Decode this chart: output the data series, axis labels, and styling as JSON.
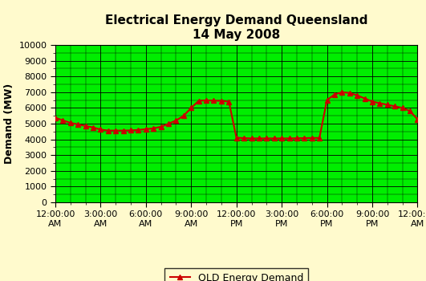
{
  "title_line1": "Electrical Energy Demand Queensland",
  "title_line2": "14 May 2008",
  "ylabel": "Demand (MW)",
  "legend_label": "QLD Energy Demand",
  "background_color": "#FFFACD",
  "plot_bg_color": "#00EE00",
  "line_color": "#CC0000",
  "marker": "^",
  "markersize": 4,
  "linewidth": 1.5,
  "ylim": [
    0,
    10000
  ],
  "yticks": [
    0,
    1000,
    2000,
    3000,
    4000,
    5000,
    6000,
    7000,
    8000,
    9000,
    10000
  ],
  "xtick_positions": [
    0,
    3,
    6,
    9,
    12,
    15,
    18,
    21,
    24
  ],
  "xtick_labels_line1": [
    "12:00:00",
    "3:00:00",
    "6:00:00",
    "9:00:00",
    "12:00:00",
    "3:00:00",
    "6:00:00",
    "9:00:00",
    "12:00:00"
  ],
  "xtick_labels_line2": [
    "AM",
    "AM",
    "AM",
    "AM",
    "PM",
    "PM",
    "PM",
    "PM",
    "AM"
  ],
  "xlim": [
    0,
    24
  ],
  "time_values": [
    0,
    0.5,
    1,
    1.5,
    2,
    2.5,
    3,
    3.5,
    4,
    4.5,
    5,
    5.5,
    6,
    6.5,
    7,
    7.5,
    8,
    8.5,
    9,
    9.5,
    10,
    10.5,
    11,
    11.5,
    12,
    12.5,
    13,
    13.5,
    14,
    14.5,
    15,
    15.5,
    16,
    16.5,
    17,
    17.5,
    18,
    18.5,
    19,
    19.5,
    20,
    20.5,
    21,
    21.5,
    22,
    22.5,
    23,
    23.5,
    24
  ],
  "demand_values": [
    5380,
    5200,
    5050,
    4950,
    4850,
    4760,
    4620,
    4560,
    4560,
    4560,
    4570,
    4600,
    4650,
    4700,
    4800,
    5000,
    5200,
    5500,
    6000,
    6450,
    6480,
    6460,
    6450,
    6400,
    4100,
    4080,
    4060,
    4060,
    4060,
    4060,
    4060,
    4060,
    4070,
    4080,
    4090,
    4090,
    6500,
    6850,
    7000,
    6950,
    6800,
    6600,
    6400,
    6300,
    6200,
    6100,
    6000,
    5800,
    5280
  ],
  "title_fontsize": 11,
  "axis_label_fontsize": 9,
  "tick_fontsize": 8,
  "legend_fontsize": 9,
  "grid_color": "#000000",
  "grid_major_lw": 0.6,
  "grid_minor_lw": 0.3,
  "minor_x_step": 1,
  "minor_y_step": 500
}
